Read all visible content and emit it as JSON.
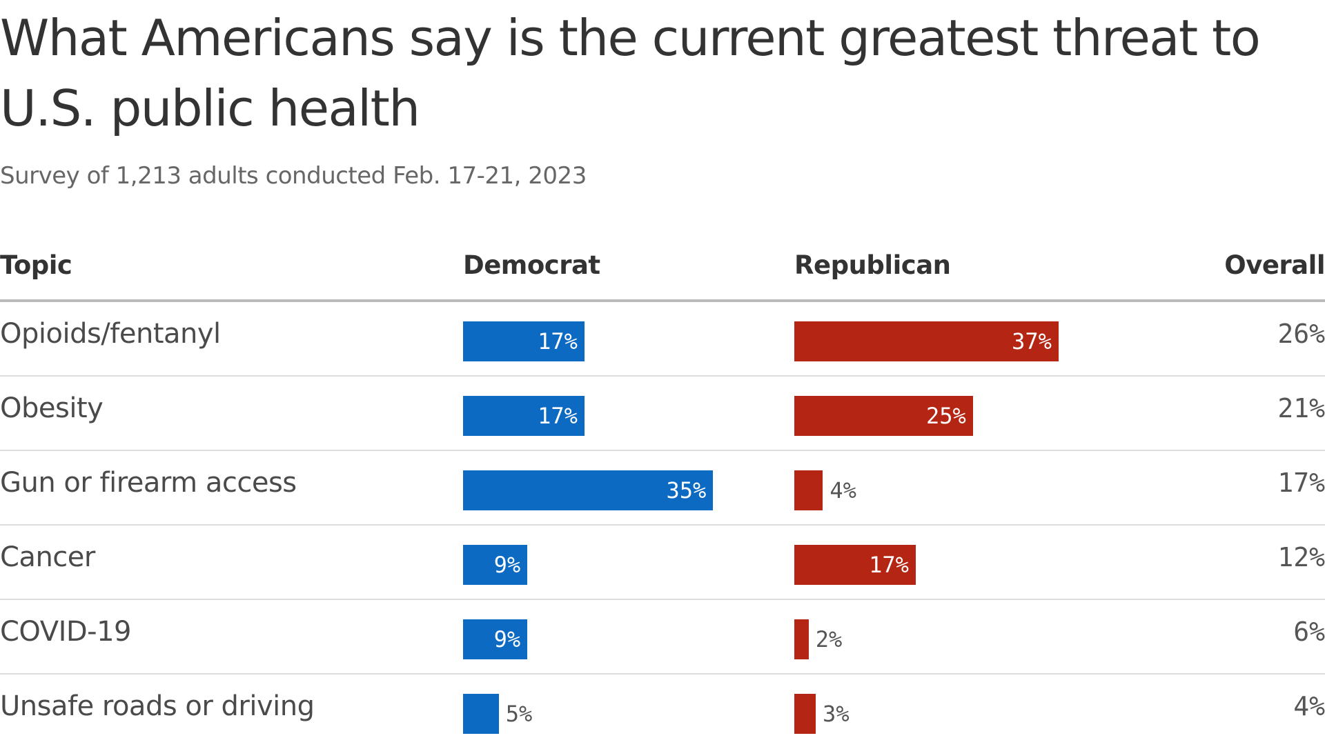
{
  "chart_data": {
    "type": "table",
    "title": "What Americans say is the current greatest threat to U.S. public health",
    "subtitle": "Survey of 1,213 adults conducted Feb. 17-21, 2023",
    "columns": [
      "Topic",
      "Democrat",
      "Republican",
      "Overall"
    ],
    "categories": [
      "Opioids/fentanyl",
      "Obesity",
      "Gun or firearm access",
      "Cancer",
      "COVID-19",
      "Unsafe roads or driving"
    ],
    "series": [
      {
        "name": "Democrat",
        "color": "#0c6ac3",
        "values": [
          17,
          17,
          35,
          9,
          9,
          5
        ]
      },
      {
        "name": "Republican",
        "color": "#b42513",
        "values": [
          37,
          25,
          4,
          17,
          2,
          3
        ]
      },
      {
        "name": "Overall",
        "values": [
          26,
          21,
          17,
          12,
          6,
          4
        ]
      }
    ],
    "unit": "%",
    "labels": {
      "democrat": [
        "17%",
        "17%",
        "35%",
        "9%",
        "9%",
        "5%"
      ],
      "republican": [
        "37%",
        "25%",
        "4%",
        "17%",
        "2%",
        "3%"
      ],
      "overall": [
        "26%",
        "21%",
        "17%",
        "12%",
        "6%",
        "4%"
      ]
    }
  }
}
